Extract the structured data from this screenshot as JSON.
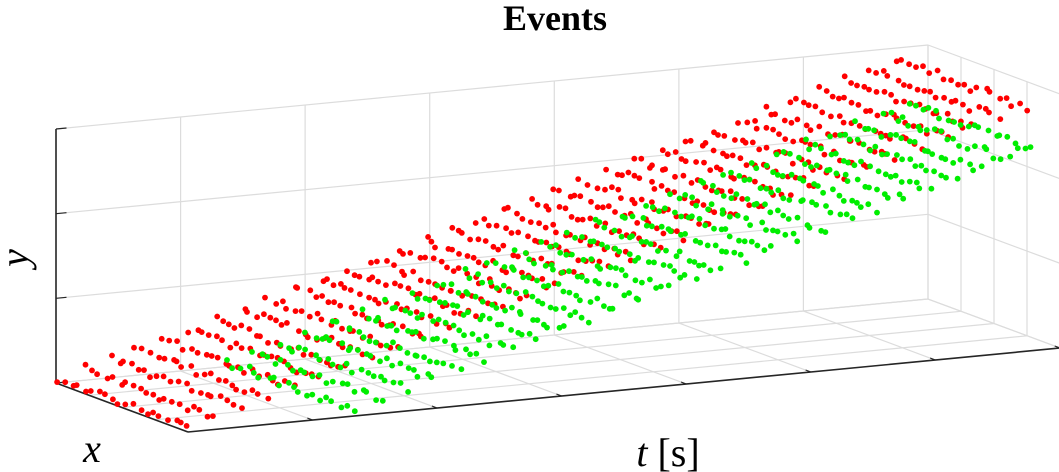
{
  "chart_data": {
    "type": "scatter",
    "projection": "3d",
    "title": "Events",
    "xlabel": "t [s]",
    "ylabel": "y",
    "zlabel": "x",
    "grid": true,
    "tick_labels": false,
    "series": [
      {
        "polarity": "positive",
        "color": "#ff0000",
        "slices_t": [
          0.0,
          0.03,
          0.06,
          0.09,
          0.12,
          0.15,
          0.18,
          0.21,
          0.24,
          0.27,
          0.3,
          0.33,
          0.36,
          0.39,
          0.42,
          0.45,
          0.48,
          0.51,
          0.54,
          0.57,
          0.6,
          0.63,
          0.66,
          0.69,
          0.72,
          0.75,
          0.78,
          0.81,
          0.84,
          0.87,
          0.9,
          0.93,
          0.96
        ]
      },
      {
        "polarity": "negative",
        "color": "#00ee00",
        "slices_t": [
          0.19,
          0.22,
          0.25,
          0.28,
          0.31,
          0.34,
          0.37,
          0.4,
          0.43,
          0.46,
          0.49,
          0.52,
          0.55,
          0.58,
          0.61,
          0.64,
          0.67,
          0.7,
          0.73,
          0.76,
          0.79,
          0.82,
          0.85,
          0.88,
          0.91,
          0.94,
          0.97
        ]
      }
    ]
  }
}
